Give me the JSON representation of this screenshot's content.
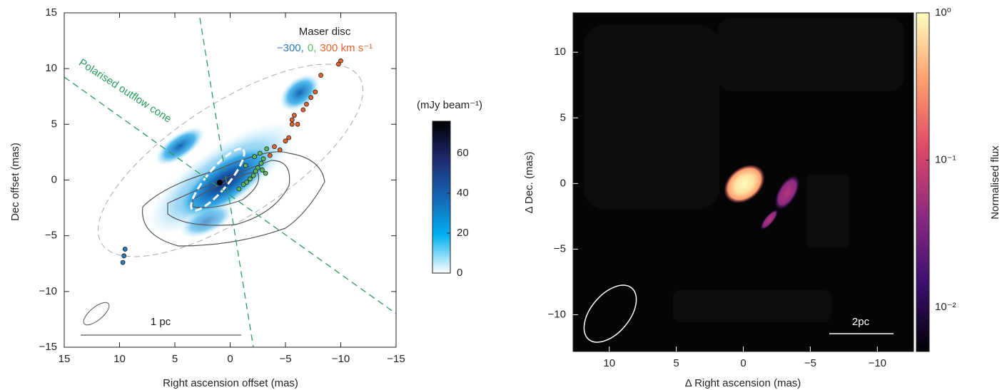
{
  "chart_data": [
    {
      "type": "scatter",
      "x_label": "Right ascension offset (mas)",
      "y_label": "Dec offset (mas)",
      "xlim": [
        15,
        -15
      ],
      "ylim": [
        -15,
        15
      ],
      "xticks": [
        15,
        10,
        5,
        0,
        {
          "value": -5,
          "label": "−5"
        },
        {
          "value": -10,
          "label": "−10"
        },
        {
          "value": -15,
          "label": "−15"
        }
      ],
      "yticks": [
        {
          "value": -15,
          "label": "−15"
        },
        {
          "value": -10,
          "label": "−10"
        },
        {
          "value": -5,
          "label": "−5"
        },
        0,
        5,
        10,
        15
      ],
      "legend_title": "Maser disc",
      "series": [
        {
          "name": "−300,",
          "color": "#2b7bba",
          "x": [
            9.5,
            9.6,
            9.7
          ],
          "values": [
            -6.2,
            -6.8,
            -7.4
          ]
        },
        {
          "name": "0,",
          "color": "#5cb85c",
          "x": [
            -0.8,
            -1.2,
            -1.5,
            -1.8,
            -2.1,
            -2.3,
            -2.5,
            -2.8,
            -3.0,
            -3.2,
            -2.9,
            -1.4,
            -2.2,
            -2.7,
            -3.3
          ],
          "values": [
            -0.8,
            -0.4,
            -0.2,
            0.1,
            0.4,
            0.8,
            1.1,
            1.5,
            1.9,
            0.6,
            0.9,
            1.3,
            2.1,
            2.4,
            2.8
          ]
        },
        {
          "name": "300 km s⁻¹",
          "color": "#e8622c",
          "x": [
            -3.6,
            -4.0,
            -4.5,
            -5.0,
            -5.3,
            -5.6,
            -5.8,
            -5.6,
            -6.1,
            -6.6,
            -6.9,
            -7.3,
            -7.7,
            -8.2,
            -9.8,
            -10.0
          ],
          "values": [
            2.2,
            3.0,
            2.7,
            3.5,
            3.8,
            5.4,
            5.8,
            5.0,
            5.0,
            6.3,
            6.8,
            7.4,
            7.9,
            9.4,
            10.4,
            10.7
          ]
        }
      ],
      "cone_label": "Polarised outflow cone",
      "scale_label": "1 pc",
      "colorbar": {
        "label": "(mJy beam⁻¹)",
        "lim": [
          0,
          76
        ],
        "ticks": [
          0,
          20,
          40,
          60
        ],
        "log": false,
        "colors": [
          "#ffffff",
          "#00b0f0",
          "#1565b5",
          "#1e2a70",
          "#000000"
        ]
      }
    },
    {
      "type": "image",
      "x_label": "Δ Right ascension (mas)",
      "y_label": "Δ Dec. (mas)",
      "xlim": [
        12.7,
        -12.7
      ],
      "ylim": [
        -12.8,
        13
      ],
      "xticks": [
        10,
        5,
        0,
        {
          "value": -5,
          "label": "−5"
        },
        {
          "value": -10,
          "label": "−10"
        }
      ],
      "yticks": [
        {
          "value": -10,
          "label": "−10"
        },
        {
          "value": -5,
          "label": "−5"
        },
        0,
        5,
        10
      ],
      "scale_label": "2pc",
      "colorbar": {
        "label": "Normalised flux",
        "lim": [
          0.005,
          1
        ],
        "log": true,
        "ticks": [
          {
            "value": 0.01,
            "label": "10⁻²"
          },
          {
            "value": 0.1,
            "label": "10⁻¹"
          },
          {
            "value": 1,
            "label": "10⁰"
          }
        ],
        "colors": [
          "#000004",
          "#3b0f70",
          "#8c2981",
          "#de4968",
          "#fe9f6d",
          "#fcfdbf"
        ]
      }
    }
  ]
}
